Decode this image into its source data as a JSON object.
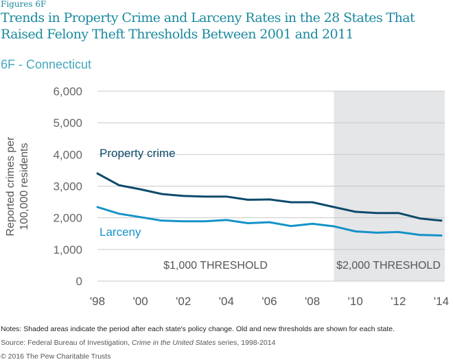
{
  "figure_label": "Figures 6F",
  "title": "Trends in Property Crime and Larceny Rates in the 28 States That Raised Felony Theft Thresholds Between 2001 and 2011",
  "subtitle": "6F - Connecticut",
  "colors": {
    "title": "#1a8a9e",
    "property_crime": "#0d4a6b",
    "larceny": "#1592c8",
    "shaded": "#e5e6e8",
    "grid": "#c8c8c8"
  },
  "chart_data": {
    "type": "line",
    "title": "6F - Connecticut",
    "xlabel": "",
    "ylabel_lines": [
      "Reported crimes per",
      "100,000 residents"
    ],
    "x": [
      1998,
      1999,
      2000,
      2001,
      2002,
      2003,
      2004,
      2005,
      2006,
      2007,
      2008,
      2009,
      2010,
      2011,
      2012,
      2013,
      2014
    ],
    "xlim": [
      1998,
      2014
    ],
    "ylim": [
      0,
      6000
    ],
    "x_ticks": [
      1998,
      2000,
      2002,
      2004,
      2006,
      2008,
      2010,
      2012,
      2014
    ],
    "x_tick_labels": [
      "'98",
      "'00",
      "'02",
      "'04",
      "'06",
      "'08",
      "'10",
      "'12",
      "'14"
    ],
    "y_ticks": [
      0,
      1000,
      2000,
      3000,
      4000,
      5000,
      6000
    ],
    "y_tick_labels": [
      "0",
      "1,000",
      "2,000",
      "3,000",
      "4,000",
      "5,000",
      "6,000"
    ],
    "grid": true,
    "series": [
      {
        "name": "Property crime",
        "values": [
          3400,
          3030,
          2900,
          2750,
          2690,
          2670,
          2670,
          2570,
          2580,
          2490,
          2490,
          2340,
          2190,
          2150,
          2150,
          1980,
          1910
        ]
      },
      {
        "name": "Larceny",
        "values": [
          2340,
          2130,
          2020,
          1910,
          1890,
          1890,
          1930,
          1830,
          1860,
          1740,
          1810,
          1730,
          1570,
          1530,
          1550,
          1460,
          1440
        ]
      }
    ],
    "series_label_positions": [
      {
        "name": "Property crime",
        "x": 2098,
        "y": 4000
      },
      {
        "name": "Larceny",
        "x": 2098,
        "y": 1550
      }
    ],
    "shaded_region": {
      "from": 2009,
      "to": 2014
    },
    "annotations": [
      {
        "text": "$1,000 THRESHOLD",
        "period": "before"
      },
      {
        "text": "$2,000 THRESHOLD",
        "period": "after"
      }
    ]
  },
  "footer": {
    "notes": "Notes: Shaded areas indicate the period after each state's policy change. Old and new thresholds are shown for each state.",
    "source_prefix": "Source: Federal Bureau of Investigation, ",
    "source_italic": "Crime in the United States",
    "source_suffix": " series, 1998-2014",
    "copyright": "© 2016 The Pew Charitable Trusts"
  }
}
